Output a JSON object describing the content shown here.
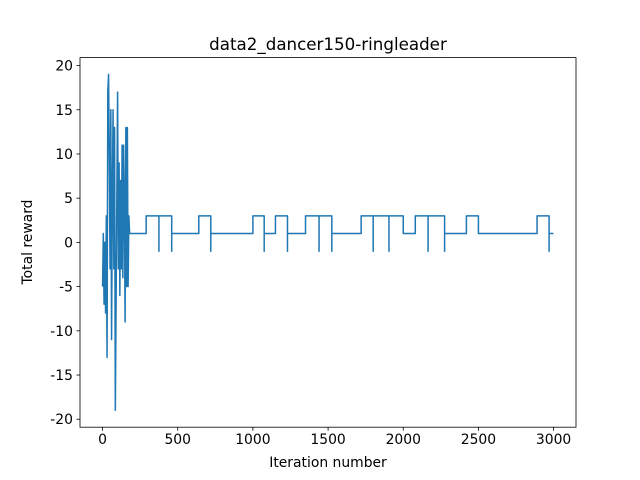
{
  "chart_data": {
    "type": "line",
    "title": "data2_dancer150-ringleader",
    "xlabel": "Iteration number",
    "ylabel": "Total reward",
    "xlim": [
      -150,
      3149
    ],
    "ylim": [
      -20.9,
      20.9
    ],
    "xticks": [
      0,
      500,
      1000,
      1500,
      2000,
      2500,
      3000
    ],
    "yticks": [
      -20,
      -15,
      -10,
      -5,
      0,
      5,
      10,
      15,
      20
    ],
    "series": [
      {
        "color": "#1f77b4",
        "x": [
          0,
          5,
          10,
          15,
          20,
          25,
          30,
          35,
          40,
          45,
          50,
          55,
          60,
          65,
          70,
          75,
          80,
          85,
          90,
          95,
          100,
          105,
          110,
          115,
          120,
          125,
          130,
          135,
          140,
          145,
          150,
          155,
          160,
          165,
          170,
          175,
          180,
          200,
          290,
          290,
          375,
          375,
          375,
          460,
          460,
          460,
          640,
          640,
          720,
          720,
          720,
          1000,
          1000,
          1075,
          1075,
          1075,
          1150,
          1150,
          1230,
          1230,
          1230,
          1350,
          1350,
          1440,
          1440,
          1440,
          1525,
          1525,
          1525,
          1720,
          1720,
          1800,
          1800,
          1800,
          1905,
          1905,
          1905,
          2000,
          2000,
          2080,
          2080,
          2165,
          2165,
          2165,
          2275,
          2275,
          2275,
          2420,
          2420,
          2500,
          2500,
          2890,
          2890,
          2970,
          2970,
          2970,
          2999
        ],
        "values": [
          -5,
          1,
          -7,
          0,
          -8,
          3,
          -13,
          17,
          19,
          9,
          -3,
          15,
          -11,
          5,
          15,
          -3,
          13,
          -19,
          -7,
          5,
          17,
          -3,
          9,
          -6,
          7,
          -3,
          11,
          -4,
          11,
          5,
          -9,
          13,
          -5,
          13,
          -5,
          3,
          1,
          1,
          1,
          3,
          3,
          -1,
          3,
          3,
          -1,
          1,
          1,
          3,
          3,
          -1,
          1,
          1,
          3,
          3,
          -1,
          1,
          1,
          3,
          3,
          -1,
          1,
          1,
          3,
          3,
          -1,
          3,
          3,
          -1,
          1,
          1,
          3,
          3,
          -1,
          3,
          3,
          -1,
          3,
          3,
          1,
          1,
          3,
          3,
          -1,
          3,
          3,
          -1,
          1,
          1,
          3,
          3,
          1,
          1,
          3,
          3,
          -1,
          1,
          1
        ]
      }
    ]
  }
}
